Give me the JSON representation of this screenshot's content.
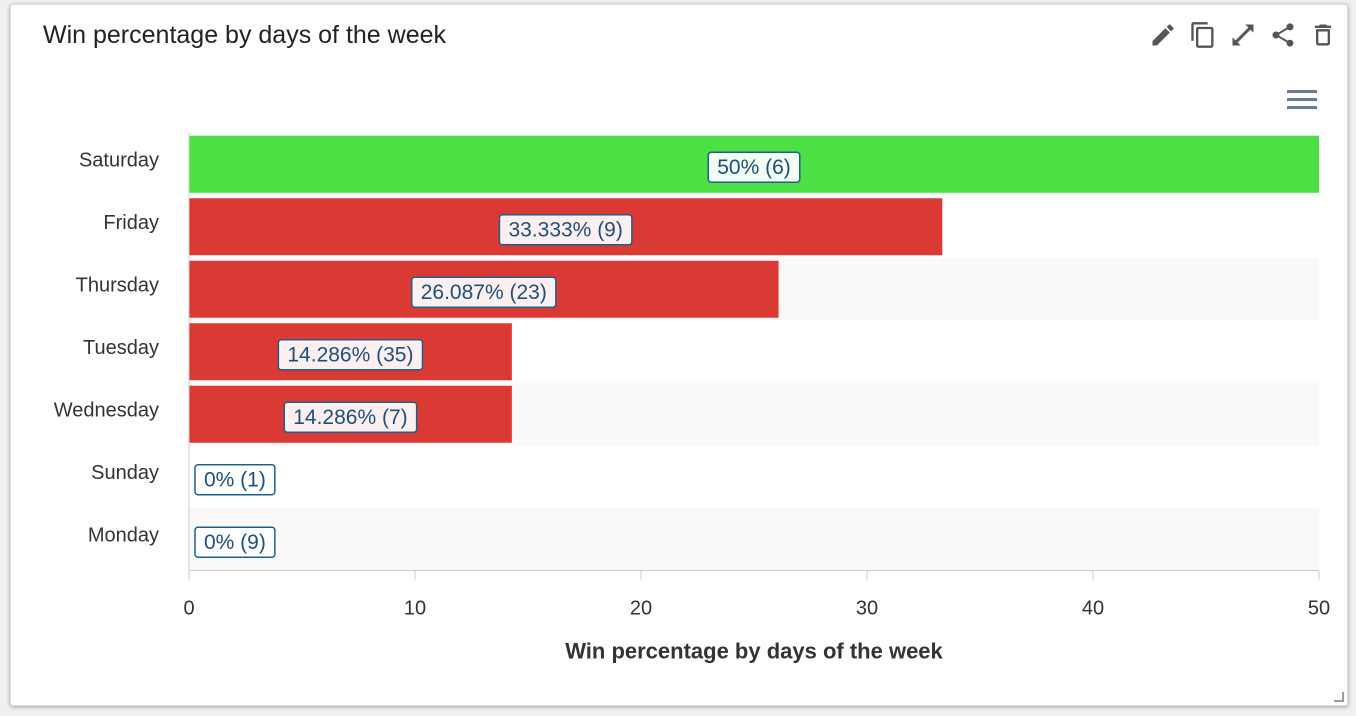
{
  "header": {
    "title": "Win percentage by days of the week"
  },
  "toolbar": {
    "icons": [
      "pencil-icon",
      "copy-icon",
      "expand-icon",
      "share-icon",
      "trash-icon"
    ]
  },
  "chart_menu_icon": "hamburger-menu-icon",
  "colors": {
    "highlight": "#4de045",
    "normal": "#db3a34",
    "row_band": "#f9f9f9",
    "label_border": "#1f5f8b",
    "label_text": "#1f4e79"
  },
  "chart_data": {
    "type": "bar",
    "orientation": "horizontal",
    "categories": [
      "Saturday",
      "Friday",
      "Thursday",
      "Tuesday",
      "Wednesday",
      "Sunday",
      "Monday"
    ],
    "values": [
      50,
      33.333,
      26.087,
      14.286,
      14.286,
      0,
      0
    ],
    "data_labels": [
      "50% (6)",
      "33.333% (9)",
      "26.087% (23)",
      "14.286% (35)",
      "14.286% (7)",
      "0% (1)",
      "0% (9)"
    ],
    "bar_colors": [
      "#4de045",
      "#db3a34",
      "#db3a34",
      "#db3a34",
      "#db3a34",
      "#db3a34",
      "#db3a34"
    ],
    "xlim": [
      0,
      50
    ],
    "xticks": [
      0,
      10,
      20,
      30,
      40,
      50
    ],
    "xlabel": "Win percentage by days of the week",
    "ylabel": "",
    "grid": false,
    "legend": "none"
  }
}
